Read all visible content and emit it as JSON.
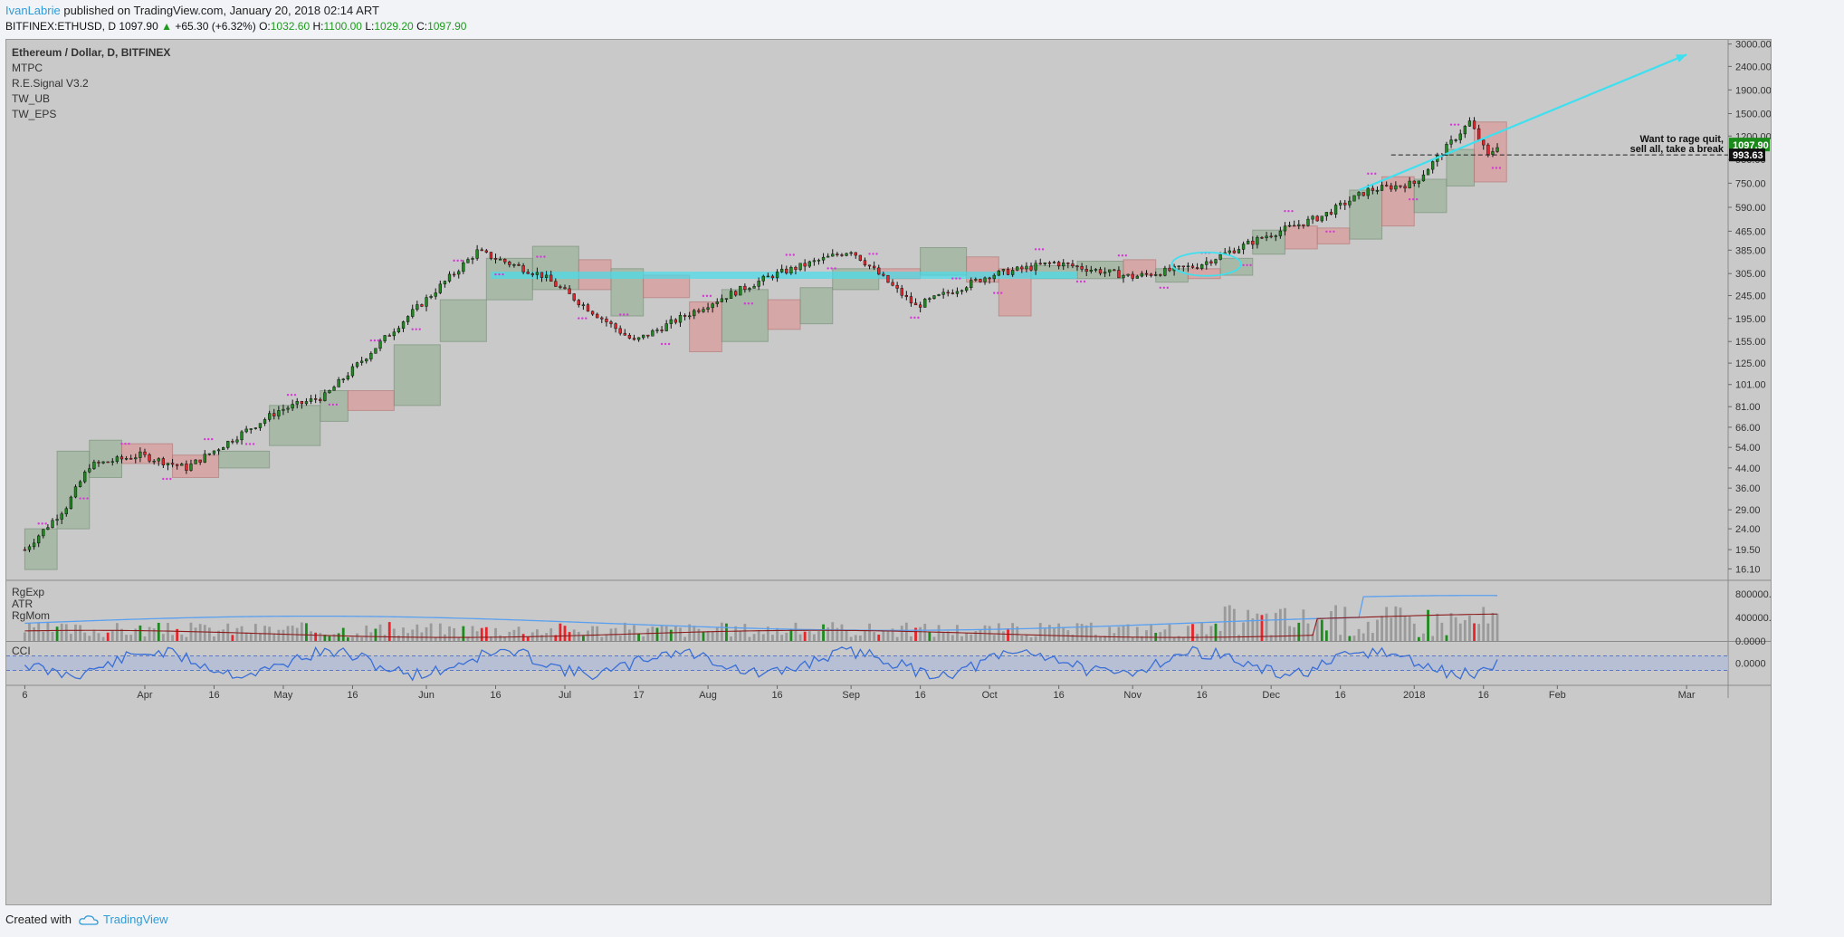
{
  "header": {
    "author": "IvanLabrie",
    "published": "published on TradingView.com, January 20, 2018 02:14 ART"
  },
  "quote": {
    "symbol": "BITFINEX:ETHUSD, D",
    "last": "1097.90",
    "up_arrow": "▲",
    "change": "+65.30 (+6.32%)",
    "open_label": "O:",
    "open": "1032.60",
    "high_label": "H:",
    "high": "1100.00",
    "low_label": "L:",
    "low": "1029.20",
    "close_label": "C:",
    "close": "1097.90"
  },
  "colors": {
    "up": "#1f8a1f",
    "down": "#e8252a",
    "up_box": "#9db49d",
    "down_box": "#d99c9c",
    "cyan": "#3ee0f0",
    "pink_dots": "#d63ad6",
    "cci_line": "#3a6fd8",
    "atr_line": "#5aa0f0",
    "rgmom_line": "#8b1c1c",
    "price_tag": "#1a8a1a",
    "chart_bg": "#c9c9c9"
  },
  "indicators": [
    "Ethereum / Dollar, D, BITFINEX",
    "MTPC",
    "R.E.Signal V3.2",
    "TW_UB",
    "TW_EPS"
  ],
  "annotation": {
    "line1": "Want to rage quit,",
    "line2": "sell all, take a break",
    "price_tag": "1097.90",
    "level_tag": "993.63"
  },
  "lower_panes": {
    "volume_labels": [
      "RgExp",
      "ATR",
      "RgMom"
    ],
    "volume_ticks": [
      "800000.0000",
      "400000.0000",
      "0.0000"
    ],
    "cci_label": "CCI",
    "cci_tick": "0.0000"
  },
  "chart_data": {
    "type": "candlestick",
    "symbol": "ETHUSD",
    "y_scale": "log",
    "ylim": [
      14.5,
      3100
    ],
    "y_ticks": [
      "3000.00",
      "2400.00",
      "1900.00",
      "1500.00",
      "1200.00",
      "950.00",
      "750.00",
      "590.00",
      "465.00",
      "385.00",
      "305.00",
      "245.00",
      "195.00",
      "155.00",
      "125.00",
      "101.00",
      "81.00",
      "66.00",
      "54.00",
      "44.00",
      "36.00",
      "29.00",
      "24.00",
      "19.50",
      "16.10"
    ],
    "x_ticks": [
      "6",
      "Apr",
      "16",
      "May",
      "16",
      "Jun",
      "16",
      "Jul",
      "17",
      "Aug",
      "16",
      "Sep",
      "16",
      "Oct",
      "16",
      "Nov",
      "16",
      "Dec",
      "16",
      "2018",
      "16",
      "Feb",
      "Mar"
    ],
    "close_approx": [
      {
        "date": "2017-03-06",
        "close": 19.5
      },
      {
        "date": "2017-03-15",
        "close": 30
      },
      {
        "date": "2017-03-20",
        "close": 45
      },
      {
        "date": "2017-03-31",
        "close": 50
      },
      {
        "date": "2017-04-10",
        "close": 44
      },
      {
        "date": "2017-04-30",
        "close": 78
      },
      {
        "date": "2017-05-10",
        "close": 90
      },
      {
        "date": "2017-05-25",
        "close": 175
      },
      {
        "date": "2017-06-12",
        "close": 380
      },
      {
        "date": "2017-06-26",
        "close": 300
      },
      {
        "date": "2017-07-16",
        "close": 155
      },
      {
        "date": "2017-08-01",
        "close": 225
      },
      {
        "date": "2017-08-15",
        "close": 300
      },
      {
        "date": "2017-09-01",
        "close": 385
      },
      {
        "date": "2017-09-15",
        "close": 220
      },
      {
        "date": "2017-10-01",
        "close": 300
      },
      {
        "date": "2017-10-15",
        "close": 340
      },
      {
        "date": "2017-11-01",
        "close": 295
      },
      {
        "date": "2017-11-15",
        "close": 330
      },
      {
        "date": "2017-11-30",
        "close": 445
      },
      {
        "date": "2017-12-12",
        "close": 540
      },
      {
        "date": "2017-12-22",
        "close": 700
      },
      {
        "date": "2018-01-01",
        "close": 750
      },
      {
        "date": "2018-01-13",
        "close": 1380
      },
      {
        "date": "2018-01-17",
        "close": 980
      },
      {
        "date": "2018-01-19",
        "close": 1097.9
      }
    ],
    "horizontal_levels": [
      300,
      993.63
    ],
    "trendline": {
      "from": {
        "date": "2017-12-20",
        "price": 700
      },
      "to": {
        "date": "2018-03-01",
        "price": 2700
      }
    },
    "boxes": [
      {
        "start": "2017-03-06",
        "end": "2017-03-12",
        "low": 16,
        "high": 24,
        "dir": "up"
      },
      {
        "start": "2017-03-13",
        "end": "2017-03-19",
        "low": 24,
        "high": 52,
        "dir": "up"
      },
      {
        "start": "2017-03-20",
        "end": "2017-03-26",
        "low": 40,
        "high": 58,
        "dir": "up"
      },
      {
        "start": "2017-03-27",
        "end": "2017-04-06",
        "low": 46,
        "high": 56,
        "dir": "down"
      },
      {
        "start": "2017-04-07",
        "end": "2017-04-16",
        "low": 40,
        "high": 50,
        "dir": "down"
      },
      {
        "start": "2017-04-17",
        "end": "2017-04-27",
        "low": 44,
        "high": 52,
        "dir": "up"
      },
      {
        "start": "2017-04-28",
        "end": "2017-05-08",
        "low": 55,
        "high": 82,
        "dir": "up"
      },
      {
        "start": "2017-05-09",
        "end": "2017-05-14",
        "low": 70,
        "high": 95,
        "dir": "up"
      },
      {
        "start": "2017-05-15",
        "end": "2017-05-24",
        "low": 78,
        "high": 95,
        "dir": "down"
      },
      {
        "start": "2017-05-25",
        "end": "2017-06-03",
        "low": 82,
        "high": 150,
        "dir": "up"
      },
      {
        "start": "2017-06-04",
        "end": "2017-06-13",
        "low": 155,
        "high": 235,
        "dir": "up"
      },
      {
        "start": "2017-06-14",
        "end": "2017-06-23",
        "low": 235,
        "high": 355,
        "dir": "up"
      },
      {
        "start": "2017-06-24",
        "end": "2017-07-03",
        "low": 260,
        "high": 400,
        "dir": "up"
      },
      {
        "start": "2017-07-04",
        "end": "2017-07-10",
        "low": 260,
        "high": 350,
        "dir": "down"
      },
      {
        "start": "2017-07-11",
        "end": "2017-07-17",
        "low": 200,
        "high": 320,
        "dir": "up"
      },
      {
        "start": "2017-07-18",
        "end": "2017-07-27",
        "low": 240,
        "high": 300,
        "dir": "down"
      },
      {
        "start": "2017-07-28",
        "end": "2017-08-03",
        "low": 140,
        "high": 230,
        "dir": "down"
      },
      {
        "start": "2017-08-04",
        "end": "2017-08-13",
        "low": 155,
        "high": 260,
        "dir": "up"
      },
      {
        "start": "2017-08-14",
        "end": "2017-08-20",
        "low": 175,
        "high": 235,
        "dir": "down"
      },
      {
        "start": "2017-08-21",
        "end": "2017-08-27",
        "low": 185,
        "high": 265,
        "dir": "up"
      },
      {
        "start": "2017-08-28",
        "end": "2017-09-06",
        "low": 260,
        "high": 320,
        "dir": "up"
      },
      {
        "start": "2017-09-07",
        "end": "2017-09-15",
        "low": 290,
        "high": 320,
        "dir": "down"
      },
      {
        "start": "2017-09-16",
        "end": "2017-09-25",
        "low": 300,
        "high": 395,
        "dir": "up"
      },
      {
        "start": "2017-09-26",
        "end": "2017-10-02",
        "low": 280,
        "high": 360,
        "dir": "down"
      },
      {
        "start": "2017-10-03",
        "end": "2017-10-09",
        "low": 200,
        "high": 320,
        "dir": "down"
      },
      {
        "start": "2017-10-10",
        "end": "2017-10-19",
        "low": 290,
        "high": 330,
        "dir": "up"
      },
      {
        "start": "2017-10-20",
        "end": "2017-10-29",
        "low": 290,
        "high": 345,
        "dir": "up"
      },
      {
        "start": "2017-10-30",
        "end": "2017-11-05",
        "low": 300,
        "high": 350,
        "dir": "down"
      },
      {
        "start": "2017-11-06",
        "end": "2017-11-12",
        "low": 280,
        "high": 320,
        "dir": "up"
      },
      {
        "start": "2017-11-13",
        "end": "2017-11-19",
        "low": 290,
        "high": 320,
        "dir": "down"
      },
      {
        "start": "2017-11-20",
        "end": "2017-11-26",
        "low": 300,
        "high": 355,
        "dir": "up"
      },
      {
        "start": "2017-11-27",
        "end": "2017-12-03",
        "low": 370,
        "high": 470,
        "dir": "up"
      },
      {
        "start": "2017-12-04",
        "end": "2017-12-10",
        "low": 390,
        "high": 490,
        "dir": "down"
      },
      {
        "start": "2017-12-11",
        "end": "2017-12-17",
        "low": 410,
        "high": 480,
        "dir": "down"
      },
      {
        "start": "2017-12-18",
        "end": "2017-12-24",
        "low": 430,
        "high": 700,
        "dir": "up"
      },
      {
        "start": "2017-12-25",
        "end": "2017-12-31",
        "low": 490,
        "high": 800,
        "dir": "down"
      },
      {
        "start": "2018-01-01",
        "end": "2018-01-07",
        "low": 560,
        "high": 780,
        "dir": "up"
      },
      {
        "start": "2018-01-08",
        "end": "2018-01-13",
        "low": 730,
        "high": 1050,
        "dir": "up"
      },
      {
        "start": "2018-01-14",
        "end": "2018-01-20",
        "low": 760,
        "high": 1380,
        "dir": "down"
      }
    ]
  },
  "footer": {
    "created_with": "Created with",
    "brand": "TradingView"
  }
}
